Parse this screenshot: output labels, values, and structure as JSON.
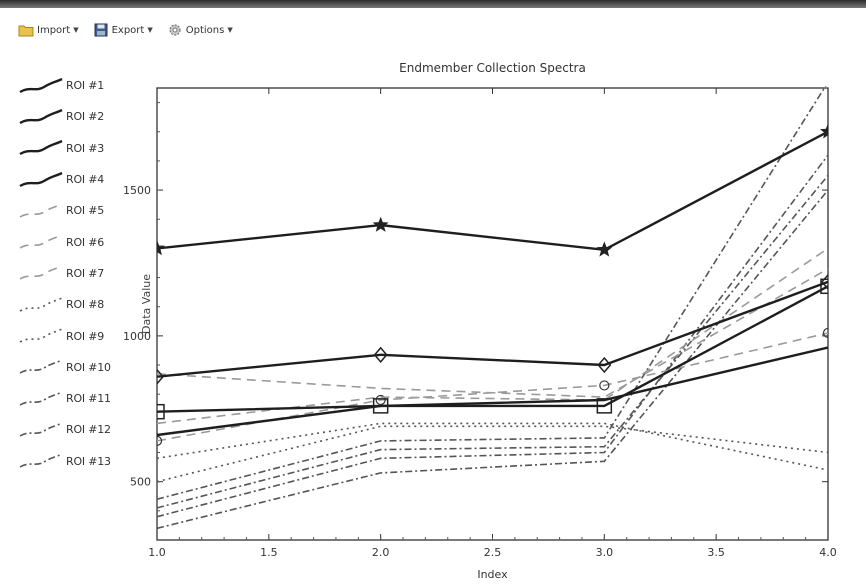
{
  "toolbar": {
    "import_label": "Import",
    "export_label": "Export",
    "options_label": "Options",
    "import_icon": "folder-icon",
    "export_icon": "floppy-disk-icon",
    "options_icon": "gear-icon"
  },
  "chart_data": {
    "type": "line",
    "title": "Endmember Collection Spectra",
    "xlabel": "Index",
    "ylabel": "Data Value",
    "x": [
      1.0,
      2.0,
      3.0,
      4.0
    ],
    "xlim": [
      1.0,
      4.0
    ],
    "ylim": [
      300,
      1850
    ],
    "xticks": [
      "1.0",
      "1.5",
      "2.0",
      "2.5",
      "3.0",
      "3.5",
      "4.0"
    ],
    "yticks": [
      "500",
      "1000",
      "1500"
    ],
    "grid": false,
    "legend_position": "left, outside plot",
    "series": [
      {
        "name": "ROI #1",
        "style": "solid",
        "marker": "star",
        "values": [
          1300,
          1380,
          1295,
          1700
        ]
      },
      {
        "name": "ROI #2",
        "style": "solid",
        "marker": "diamond",
        "values": [
          860,
          935,
          900,
          1185
        ]
      },
      {
        "name": "ROI #3",
        "style": "solid",
        "marker": "square",
        "values": [
          740,
          760,
          760,
          1170
        ]
      },
      {
        "name": "ROI #4",
        "style": "solid",
        "marker": "none",
        "values": [
          660,
          760,
          780,
          960
        ]
      },
      {
        "name": "ROI #5",
        "style": "dashed",
        "marker": "none",
        "values": [
          870,
          820,
          790,
          1230
        ]
      },
      {
        "name": "ROI #6",
        "style": "dashed",
        "marker": "none",
        "values": [
          700,
          790,
          780,
          1300
        ]
      },
      {
        "name": "ROI #7",
        "style": "dashed",
        "marker": "circle",
        "values": [
          640,
          780,
          830,
          1010
        ]
      },
      {
        "name": "ROI #8",
        "style": "dotted",
        "marker": "none",
        "values": [
          580,
          700,
          700,
          540
        ]
      },
      {
        "name": "ROI #9",
        "style": "dotted",
        "marker": "none",
        "values": [
          500,
          690,
          690,
          600
        ]
      },
      {
        "name": "ROI #10",
        "style": "dash-dot",
        "marker": "none",
        "values": [
          440,
          640,
          650,
          1870
        ]
      },
      {
        "name": "ROI #11",
        "style": "dash-dot",
        "marker": "none",
        "values": [
          410,
          610,
          620,
          1550
        ]
      },
      {
        "name": "ROI #12",
        "style": "dash-dot",
        "marker": "none",
        "values": [
          380,
          580,
          600,
          1620
        ]
      },
      {
        "name": "ROI #13",
        "style": "dash-dot",
        "marker": "none",
        "values": [
          340,
          530,
          570,
          1500
        ]
      }
    ]
  }
}
